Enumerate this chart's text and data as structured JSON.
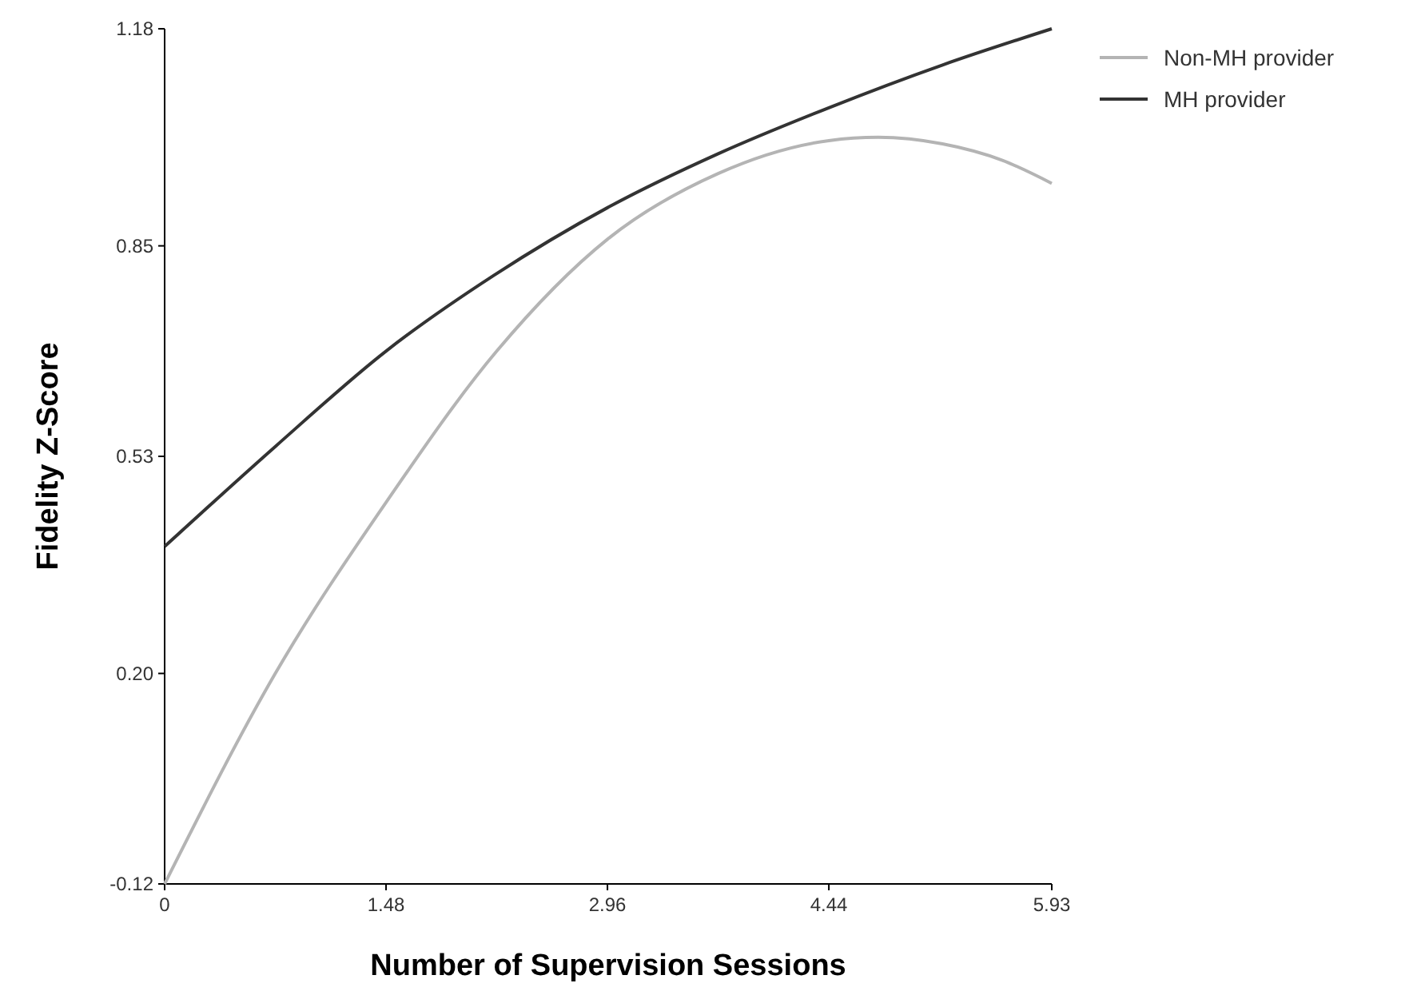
{
  "chart_data": {
    "type": "line",
    "xlabel": "Number of Supervision Sessions",
    "ylabel": "Fidelity Z-Score",
    "xlim": [
      0,
      5.93
    ],
    "xticks": [
      0,
      1.48,
      2.96,
      4.44,
      5.93
    ],
    "ylim": [
      -0.12,
      1.18
    ],
    "yticks": [
      -0.12,
      {
        "value": 0.2,
        "label": "0.20"
      },
      0.53,
      0.85,
      1.18
    ],
    "grid": false,
    "legend": "top right",
    "marker": "none",
    "line_style": "solid",
    "series": [
      {
        "name": "Non-MH provider",
        "color": "#b4b4b4",
        "x": [
          0,
          0.74,
          1.48,
          2.22,
          2.96,
          3.7,
          4.44,
          4.77,
          5.2,
          5.6,
          5.93
        ],
        "values": [
          -0.12,
          0.2,
          0.46,
          0.69,
          0.86,
          0.96,
          1.01,
          1.015,
          1.005,
          0.98,
          0.945
        ]
      },
      {
        "name": "MH provider",
        "color": "#333333",
        "x": [
          0,
          0.74,
          1.48,
          2.2,
          2.96,
          3.7,
          4.44,
          5.2,
          5.93
        ],
        "values": [
          0.393,
          0.545,
          0.69,
          0.805,
          0.908,
          0.99,
          1.06,
          1.125,
          1.18
        ]
      }
    ]
  }
}
